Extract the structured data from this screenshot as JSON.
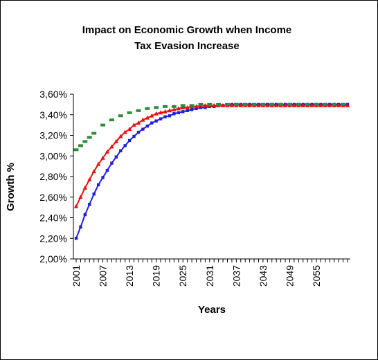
{
  "chart_data": {
    "type": "line",
    "title_line1": "Impact on Economic Growth when Income",
    "title_line2": "Tax Evasion Increase",
    "xlabel": "Years",
    "ylabel": "Growth %",
    "ylim": [
      2.0,
      3.6
    ],
    "xlim": [
      2001,
      2062
    ],
    "y_ticks": [
      "2,00%",
      "2,20%",
      "2,40%",
      "2,60%",
      "2,80%",
      "3,00%",
      "3,20%",
      "3,40%",
      "3,60%"
    ],
    "x_tick_labels": [
      "2001",
      "2007",
      "2013",
      "2019",
      "2025",
      "2031",
      "2037",
      "2043",
      "2049",
      "2055"
    ],
    "grid": false,
    "legend": "none",
    "series": [
      {
        "color": "#1f1fe0",
        "marker": "square",
        "x": [
          2001,
          2002,
          2003,
          2004,
          2005,
          2006,
          2007,
          2008,
          2009,
          2010,
          2011,
          2012,
          2013,
          2014,
          2015,
          2016,
          2017,
          2018,
          2019,
          2020,
          2021,
          2022,
          2023,
          2024,
          2025,
          2026,
          2027,
          2028,
          2029,
          2030,
          2031,
          2032,
          2033,
          2034,
          2035,
          2036,
          2037,
          2038,
          2039,
          2040,
          2041,
          2042,
          2043,
          2044,
          2045,
          2046,
          2047,
          2048,
          2049,
          2050,
          2051,
          2052,
          2053,
          2054,
          2055,
          2056,
          2057,
          2058,
          2059,
          2060,
          2061,
          2062
        ],
        "values": [
          2.2,
          2.31,
          2.43,
          2.53,
          2.63,
          2.72,
          2.79,
          2.86,
          2.93,
          2.99,
          3.05,
          3.1,
          3.15,
          3.19,
          3.23,
          3.26,
          3.29,
          3.32,
          3.34,
          3.36,
          3.38,
          3.39,
          3.41,
          3.42,
          3.43,
          3.44,
          3.45,
          3.46,
          3.47,
          3.47,
          3.48,
          3.48,
          3.49,
          3.49,
          3.49,
          3.5,
          3.5,
          3.5,
          3.5,
          3.5,
          3.5,
          3.5,
          3.5,
          3.5,
          3.5,
          3.5,
          3.5,
          3.5,
          3.5,
          3.5,
          3.5,
          3.5,
          3.5,
          3.5,
          3.5,
          3.5,
          3.5,
          3.5,
          3.5,
          3.5,
          3.5,
          3.5
        ]
      },
      {
        "color": "#e81010",
        "marker": "triangle",
        "x": [
          2001,
          2002,
          2003,
          2004,
          2005,
          2006,
          2007,
          2008,
          2009,
          2010,
          2011,
          2012,
          2013,
          2014,
          2015,
          2016,
          2017,
          2018,
          2019,
          2020,
          2021,
          2022,
          2023,
          2024,
          2025,
          2026,
          2027,
          2028,
          2029,
          2030,
          2031,
          2032,
          2033,
          2034,
          2035,
          2036,
          2037,
          2038,
          2039,
          2040,
          2041,
          2042,
          2043,
          2044,
          2045,
          2046,
          2047,
          2048,
          2049,
          2050,
          2051,
          2052,
          2053,
          2054,
          2055,
          2056,
          2057,
          2058,
          2059,
          2060,
          2061,
          2062
        ],
        "values": [
          2.51,
          2.6,
          2.69,
          2.77,
          2.85,
          2.92,
          2.98,
          3.04,
          3.09,
          3.14,
          3.19,
          3.23,
          3.26,
          3.3,
          3.32,
          3.35,
          3.37,
          3.39,
          3.41,
          3.42,
          3.43,
          3.44,
          3.45,
          3.46,
          3.47,
          3.47,
          3.48,
          3.48,
          3.49,
          3.49,
          3.49,
          3.49,
          3.49,
          3.49,
          3.49,
          3.49,
          3.49,
          3.49,
          3.49,
          3.49,
          3.49,
          3.49,
          3.49,
          3.49,
          3.49,
          3.49,
          3.49,
          3.49,
          3.49,
          3.49,
          3.49,
          3.49,
          3.49,
          3.49,
          3.49,
          3.49,
          3.49,
          3.49,
          3.49,
          3.49,
          3.49,
          3.49
        ]
      },
      {
        "color": "#2e8b3a",
        "marker": "dash",
        "x": [
          2001,
          2002,
          2003,
          2004,
          2005,
          2007,
          2009,
          2011,
          2013,
          2015,
          2017,
          2019,
          2021,
          2023,
          2025,
          2027,
          2029,
          2031,
          2033,
          2035,
          2037,
          2039,
          2041,
          2043,
          2045,
          2047,
          2049,
          2051,
          2053,
          2055,
          2057,
          2059,
          2061
        ],
        "values": [
          3.06,
          3.1,
          3.14,
          3.18,
          3.22,
          3.3,
          3.35,
          3.39,
          3.42,
          3.44,
          3.46,
          3.47,
          3.48,
          3.48,
          3.49,
          3.49,
          3.5,
          3.5,
          3.5,
          3.5,
          3.5,
          3.5,
          3.5,
          3.5,
          3.5,
          3.5,
          3.5,
          3.5,
          3.5,
          3.5,
          3.5,
          3.5,
          3.5
        ]
      }
    ]
  }
}
